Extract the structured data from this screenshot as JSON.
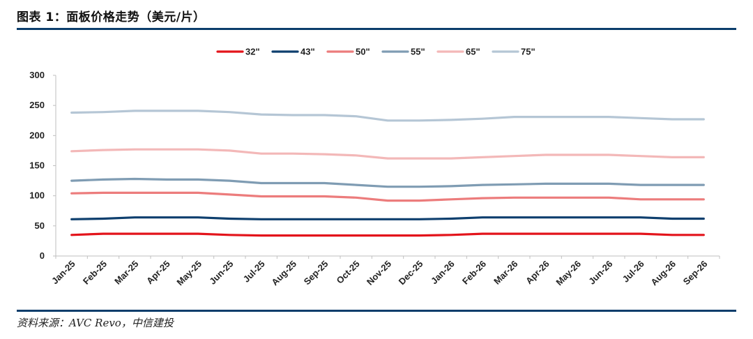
{
  "figure": {
    "title": "图表 1：面板价格走势（美元/片）",
    "source": "资料来源：AVC Revo，中信建投"
  },
  "colors": {
    "rule": "#0b3d6b"
  },
  "chart_data": {
    "type": "line",
    "title": "",
    "xlabel": "",
    "ylabel": "",
    "ylim": [
      0,
      300
    ],
    "yticks": [
      "0",
      "50",
      "100",
      "150",
      "200",
      "250",
      "300"
    ],
    "grid": false,
    "legend_position": "top",
    "categories": [
      "Jan-25",
      "Feb-25",
      "Mar-25",
      "Apr-25",
      "May-25",
      "Jun-25",
      "Jul-25",
      "Aug-25",
      "Sep-25",
      "Oct-25",
      "Nov-25",
      "Dec-25",
      "Jan-26",
      "Feb-26",
      "Mar-26",
      "Apr-26",
      "May-26",
      "Jun-26",
      "Jul-26",
      "Aug-26",
      "Sep-26"
    ],
    "series": [
      {
        "name": "32\"",
        "color": "#e3141b",
        "values": [
          35,
          37,
          37,
          37,
          37,
          35,
          34,
          34,
          34,
          34,
          34,
          34,
          35,
          37,
          37,
          37,
          37,
          37,
          37,
          35,
          35
        ]
      },
      {
        "name": "43\"",
        "color": "#0e3f6e",
        "values": [
          61,
          62,
          64,
          64,
          64,
          62,
          61,
          61,
          61,
          61,
          61,
          61,
          62,
          64,
          64,
          64,
          64,
          64,
          64,
          62,
          62
        ]
      },
      {
        "name": "50\"",
        "color": "#ec7c7c",
        "values": [
          104,
          105,
          105,
          105,
          105,
          102,
          99,
          99,
          99,
          97,
          92,
          92,
          94,
          96,
          97,
          97,
          97,
          97,
          94,
          94,
          94
        ]
      },
      {
        "name": "55\"",
        "color": "#7f9cb3",
        "values": [
          125,
          127,
          128,
          127,
          127,
          125,
          121,
          121,
          121,
          118,
          115,
          115,
          116,
          118,
          119,
          120,
          120,
          120,
          118,
          118,
          118
        ]
      },
      {
        "name": "65\"",
        "color": "#f3b8b8",
        "values": [
          174,
          176,
          177,
          177,
          177,
          175,
          170,
          170,
          169,
          167,
          162,
          162,
          162,
          164,
          166,
          168,
          168,
          168,
          166,
          164,
          164
        ]
      },
      {
        "name": "75\"",
        "color": "#b5c6d5",
        "values": [
          238,
          239,
          241,
          241,
          241,
          239,
          235,
          234,
          234,
          232,
          225,
          225,
          226,
          228,
          231,
          231,
          231,
          231,
          229,
          227,
          227
        ]
      }
    ]
  }
}
